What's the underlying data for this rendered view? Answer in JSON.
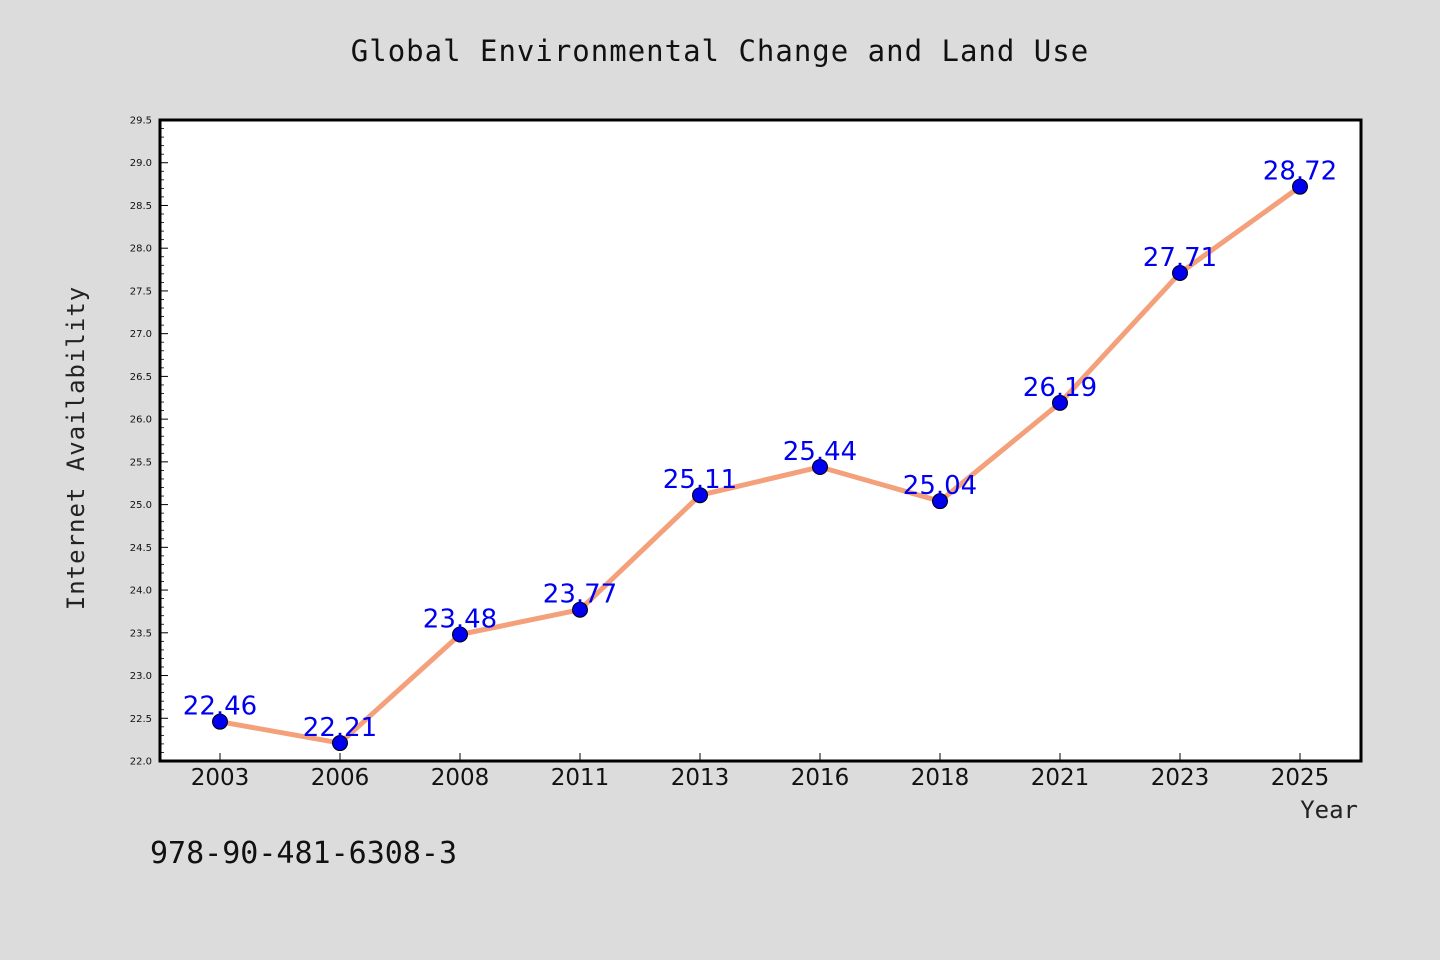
{
  "chart_data": {
    "type": "line",
    "title": "Global Environmental Change and Land Use",
    "xlabel": "Year",
    "ylabel": "Internet Availability",
    "categories": [
      "2003",
      "2006",
      "2008",
      "2011",
      "2013",
      "2016",
      "2018",
      "2021",
      "2023",
      "2025"
    ],
    "series": [
      {
        "values": [
          22.46,
          22.21,
          23.48,
          23.77,
          25.11,
          25.44,
          25.04,
          26.19,
          27.71,
          28.72
        ],
        "data_labels": [
          "22.46",
          "22.21",
          "23.48",
          "23.77",
          "25.11",
          "25.44",
          "25.04",
          "26.19",
          "27.71",
          "28.72"
        ]
      }
    ],
    "ylim": [
      22.0,
      29.5
    ],
    "yticks": [
      "22.0",
      "22.5",
      "23.0",
      "23.5",
      "24.0",
      "24.5",
      "25.0",
      "25.5",
      "26.0",
      "26.5",
      "27.0",
      "27.5",
      "28.0",
      "28.5",
      "29.0",
      "29.5"
    ],
    "grid": false,
    "colors": {
      "line": "#f4a07a",
      "marker": "#0000ee",
      "data_label": "#0000ee",
      "plot_background": "#ffffff",
      "page_background": "#dcdcdc"
    }
  },
  "footer": {
    "identifier": "978-90-481-6308-3"
  }
}
